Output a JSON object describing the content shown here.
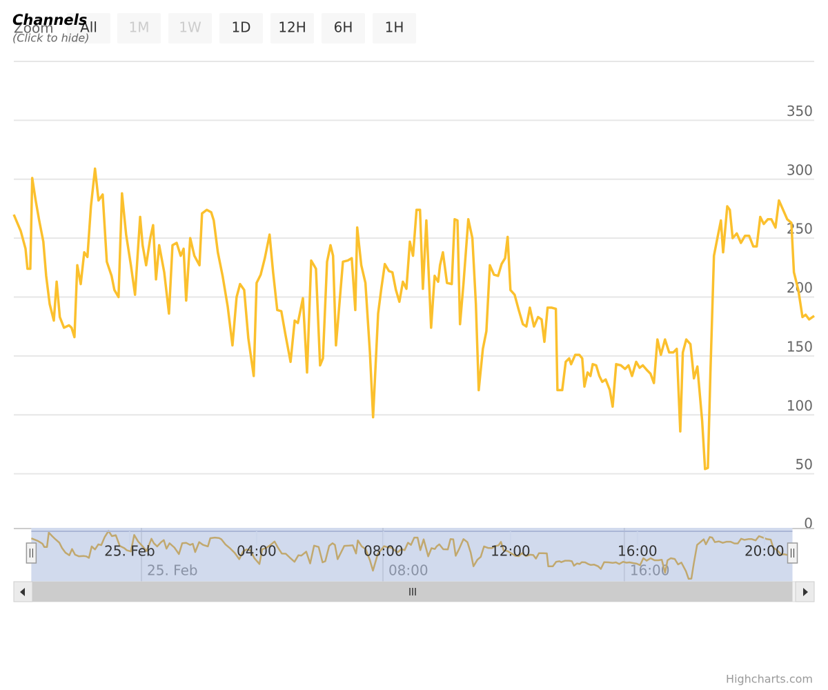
{
  "chart_data": {
    "type": "line",
    "legend_title": "(Click to hide)",
    "credits": "Highcharts.com",
    "range_selector": {
      "label": "Zoom",
      "buttons": [
        {
          "text": "All",
          "enabled": true
        },
        {
          "text": "1M",
          "enabled": false
        },
        {
          "text": "1W",
          "enabled": false
        },
        {
          "text": "1D",
          "enabled": true
        },
        {
          "text": "12H",
          "enabled": true
        },
        {
          "text": "6H",
          "enabled": true
        },
        {
          "text": "1H",
          "enabled": true
        }
      ]
    },
    "x": [
      -3.65,
      -3.43,
      -3.28,
      -3.22,
      -3.13,
      -3.07,
      -2.96,
      -2.85,
      -2.72,
      -2.63,
      -2.52,
      -2.39,
      -2.3,
      -2.2,
      -2.07,
      -1.91,
      -1.83,
      -1.74,
      -1.65,
      -1.54,
      -1.43,
      -1.33,
      -1.22,
      -1.09,
      -0.98,
      -0.85,
      -0.72,
      -0.57,
      -0.48,
      -0.35,
      -0.24,
      -0.11,
      0.04,
      0.17,
      0.33,
      0.41,
      0.52,
      0.65,
      0.74,
      0.83,
      0.93,
      1.09,
      1.24,
      1.35,
      1.48,
      1.61,
      1.7,
      1.78,
      1.91,
      2.04,
      2.2,
      2.28,
      2.43,
      2.57,
      2.65,
      2.78,
      2.93,
      3.09,
      3.24,
      3.37,
      3.48,
      3.61,
      3.74,
      3.91,
      4.0,
      4.13,
      4.26,
      4.41,
      4.52,
      4.65,
      4.78,
      4.91,
      5.07,
      5.2,
      5.3,
      5.46,
      5.59,
      5.72,
      5.87,
      6.0,
      6.09,
      6.22,
      6.33,
      6.41,
      6.5,
      6.61,
      6.72,
      6.87,
      7.0,
      7.11,
      7.17,
      7.3,
      7.43,
      7.57,
      7.67,
      7.83,
      7.93,
      8.04,
      8.17,
      8.28,
      8.39,
      8.5,
      8.61,
      8.72,
      8.83,
      8.93,
      9.04,
      9.15,
      9.24,
      9.35,
      9.5,
      9.61,
      9.72,
      9.78,
      9.87,
      10.0,
      10.15,
      10.24,
      10.33,
      10.41,
      10.52,
      10.67,
      10.8,
      10.91,
      11.0,
      11.13,
      11.24,
      11.35,
      11.48,
      11.61,
      11.72,
      11.83,
      11.91,
      12.0,
      12.13,
      12.26,
      12.39,
      12.5,
      12.61,
      12.74,
      12.87,
      12.98,
      13.07,
      13.17,
      13.3,
      13.43,
      13.48,
      13.63,
      13.74,
      13.85,
      13.91,
      14.04,
      14.17,
      14.26,
      14.33,
      14.43,
      14.52,
      14.59,
      14.7,
      14.8,
      14.89,
      15.0,
      15.13,
      15.22,
      15.33,
      15.48,
      15.61,
      15.72,
      15.83,
      15.96,
      16.07,
      16.17,
      16.3,
      16.41,
      16.52,
      16.63,
      16.74,
      16.87,
      17.0,
      17.13,
      17.24,
      17.35,
      17.43,
      17.54,
      17.67,
      17.78,
      17.89,
      18.04,
      18.13,
      18.22,
      18.3,
      18.41,
      18.52,
      18.63,
      18.7,
      18.83,
      18.91,
      19.0,
      19.13,
      19.26,
      19.39,
      19.52,
      19.65,
      19.76,
      19.87,
      19.98,
      20.11,
      20.22,
      20.35,
      20.46,
      20.59,
      20.72,
      20.85,
      20.93,
      21.07,
      21.2,
      21.3,
      21.41,
      21.57
    ],
    "series": [
      {
        "name": "Channels",
        "color": "#fbc02d",
        "values": [
          270,
          256,
          241,
          224,
          224,
          301,
          282,
          265,
          247,
          218,
          194,
          180,
          213,
          183,
          174,
          176,
          174,
          166,
          227,
          211,
          238,
          234,
          277,
          309,
          282,
          287,
          230,
          218,
          206,
          200,
          288,
          253,
          227,
          202,
          268,
          244,
          227,
          250,
          261,
          215,
          244,
          221,
          186,
          244,
          246,
          235,
          241,
          197,
          250,
          235,
          227,
          271,
          274,
          272,
          265,
          238,
          218,
          192,
          159,
          200,
          211,
          206,
          165,
          133,
          212,
          219,
          233,
          253,
          221,
          189,
          188,
          168,
          145,
          180,
          178,
          199,
          136,
          231,
          224,
          142,
          148,
          230,
          244,
          235,
          159,
          194,
          230,
          231,
          233,
          189,
          259,
          227,
          212,
          153,
          98,
          186,
          207,
          228,
          222,
          221,
          206,
          196,
          213,
          207,
          247,
          235,
          274,
          274,
          207,
          265,
          174,
          218,
          213,
          227,
          238,
          212,
          211,
          266,
          265,
          177,
          212,
          266,
          250,
          194,
          121,
          156,
          171,
          227,
          219,
          218,
          228,
          233,
          251,
          206,
          202,
          189,
          177,
          175,
          191,
          175,
          183,
          181,
          162,
          191,
          191,
          190,
          121,
          121,
          145,
          148,
          143,
          151,
          151,
          148,
          124,
          136,
          133,
          143,
          142,
          133,
          128,
          130,
          121,
          107,
          143,
          142,
          139,
          142,
          133,
          145,
          140,
          142,
          138,
          135,
          127,
          164,
          151,
          164,
          153,
          153,
          156,
          86,
          153,
          164,
          160,
          131,
          141,
          95,
          54,
          55,
          136,
          235,
          250,
          265,
          238,
          277,
          274,
          250,
          254,
          246,
          252,
          252,
          243,
          243,
          268,
          262,
          266,
          266,
          259,
          282,
          274,
          266,
          263,
          221,
          206,
          183,
          185,
          181,
          184
        ]
      }
    ],
    "xlim": [
      -3.65,
      21.57
    ],
    "xticks": [
      {
        "value": 0,
        "label": "25. Feb"
      },
      {
        "value": 4,
        "label": "04:00"
      },
      {
        "value": 8,
        "label": "08:00"
      },
      {
        "value": 12,
        "label": "12:00"
      },
      {
        "value": 16,
        "label": "16:00"
      },
      {
        "value": 20,
        "label": "20:00"
      }
    ],
    "ylim": [
      0,
      400
    ],
    "yticks": [
      0,
      50,
      100,
      150,
      200,
      250,
      300,
      350
    ],
    "grid": true,
    "navigator": {
      "color": "#e8b84a",
      "xlim": [
        -4.23,
        22.29
      ],
      "ylim": [
        50,
        315
      ],
      "xticks": [
        {
          "value": 0,
          "label": "25. Feb"
        },
        {
          "value": 8,
          "label": "08:00"
        },
        {
          "value": 16,
          "label": "16:00"
        }
      ]
    }
  }
}
